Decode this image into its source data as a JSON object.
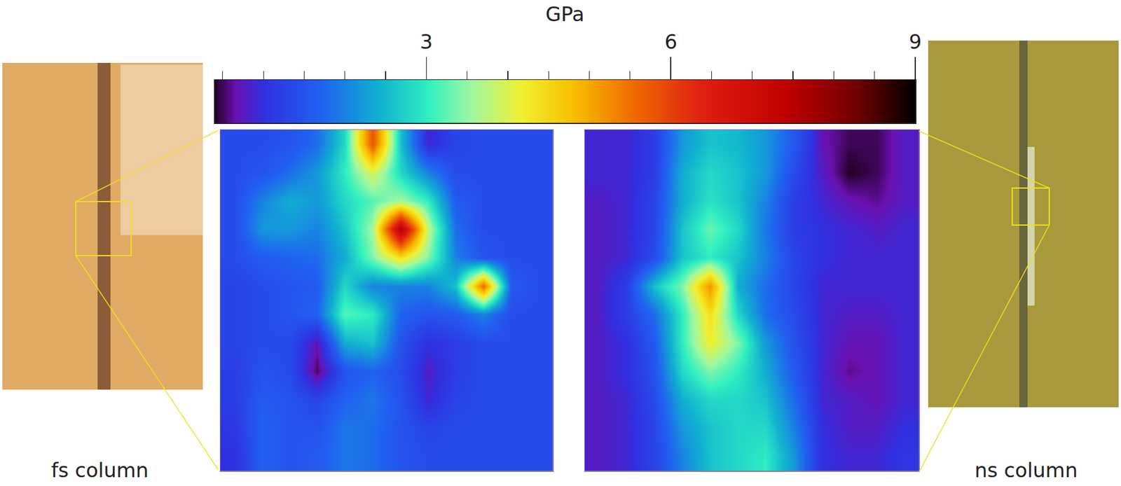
{
  "chart_data": {
    "type": "heatmap",
    "tick_labels": false,
    "colorbar": {
      "title": "GPa",
      "range": [
        0.4,
        9
      ],
      "ticks": [
        3,
        6,
        9
      ],
      "minor_ticks": [
        0.5,
        1,
        1.5,
        2,
        2.5,
        3.5,
        4,
        4.5,
        5,
        5.5,
        6.5,
        7,
        7.5,
        8,
        8.5
      ]
    },
    "panels": [
      {
        "label": "fs column",
        "z": [
          [
            1.4,
            1.4,
            1.5,
            1.8,
            2.8,
            5.8,
            2.6,
            0.9,
            1.3,
            1.4,
            1.4,
            1.4
          ],
          [
            1.4,
            1.5,
            1.8,
            2.2,
            3.0,
            4.0,
            2.8,
            2.0,
            1.4,
            1.4,
            1.4,
            1.4
          ],
          [
            1.4,
            2.0,
            2.4,
            2.2,
            2.8,
            3.2,
            3.6,
            3.0,
            1.6,
            1.4,
            1.4,
            1.4
          ],
          [
            1.4,
            2.2,
            2.2,
            2.0,
            2.6,
            3.6,
            7.6,
            3.8,
            1.8,
            1.4,
            1.4,
            1.4
          ],
          [
            1.4,
            1.6,
            1.7,
            1.8,
            2.4,
            3.4,
            4.4,
            3.4,
            2.0,
            1.5,
            1.4,
            1.4
          ],
          [
            1.3,
            1.4,
            1.5,
            1.6,
            2.8,
            2.0,
            2.0,
            2.0,
            2.6,
            5.6,
            1.6,
            1.4
          ],
          [
            1.3,
            1.4,
            1.5,
            1.7,
            3.2,
            3.0,
            1.7,
            1.5,
            1.6,
            2.0,
            1.4,
            1.4
          ],
          [
            1.3,
            1.4,
            1.4,
            0.7,
            2.4,
            2.6,
            1.5,
            1.0,
            1.2,
            1.4,
            1.4,
            1.4
          ],
          [
            1.2,
            1.5,
            1.4,
            0.5,
            1.5,
            1.7,
            1.4,
            0.8,
            1.2,
            1.4,
            1.4,
            1.4
          ],
          [
            1.2,
            1.6,
            1.5,
            1.3,
            1.7,
            1.9,
            1.5,
            0.9,
            1.3,
            1.4,
            1.4,
            1.4
          ],
          [
            1.1,
            1.7,
            1.5,
            1.5,
            1.9,
            1.8,
            1.5,
            1.3,
            1.4,
            1.4,
            1.4,
            1.4
          ],
          [
            1.0,
            1.7,
            1.5,
            1.6,
            1.9,
            1.8,
            1.5,
            1.4,
            1.4,
            1.4,
            1.4,
            1.4
          ]
        ]
      },
      {
        "label": "ns column",
        "z": [
          [
            0.9,
            0.9,
            1.2,
            2.2,
            2.6,
            2.5,
            2.2,
            1.6,
            0.7,
            0.5,
            0.5,
            0.8
          ],
          [
            0.9,
            0.9,
            1.2,
            2.4,
            2.8,
            2.6,
            2.2,
            1.4,
            0.8,
            0.4,
            0.5,
            0.8
          ],
          [
            0.8,
            0.9,
            1.3,
            2.4,
            2.9,
            2.6,
            2.0,
            1.2,
            0.9,
            0.7,
            0.6,
            0.8
          ],
          [
            0.8,
            0.9,
            1.3,
            2.6,
            3.3,
            2.8,
            1.9,
            1.2,
            1.0,
            0.9,
            0.8,
            0.9
          ],
          [
            0.8,
            0.9,
            1.4,
            2.6,
            3.0,
            2.6,
            2.0,
            1.3,
            1.0,
            0.9,
            0.9,
            0.9
          ],
          [
            0.8,
            1.2,
            2.6,
            3.4,
            5.2,
            2.4,
            1.8,
            1.3,
            0.9,
            0.9,
            0.9,
            0.9
          ],
          [
            0.8,
            1.2,
            1.8,
            3.0,
            4.4,
            2.8,
            1.8,
            1.4,
            0.9,
            0.8,
            0.8,
            0.9
          ],
          [
            0.8,
            1.0,
            1.6,
            3.0,
            4.2,
            3.4,
            2.2,
            1.5,
            0.9,
            0.7,
            0.7,
            0.9
          ],
          [
            0.8,
            1.0,
            1.5,
            2.8,
            3.4,
            3.0,
            2.4,
            1.6,
            0.9,
            0.6,
            0.7,
            0.9
          ],
          [
            0.8,
            0.9,
            1.4,
            2.4,
            2.8,
            2.8,
            2.6,
            1.8,
            0.9,
            0.8,
            0.7,
            0.9
          ],
          [
            0.8,
            0.9,
            1.3,
            2.2,
            2.6,
            2.8,
            2.8,
            2.0,
            1.0,
            0.8,
            0.8,
            1.0
          ],
          [
            0.8,
            0.9,
            1.3,
            2.0,
            2.6,
            2.8,
            3.0,
            2.2,
            1.0,
            0.9,
            0.9,
            1.1
          ]
        ]
      }
    ]
  }
}
